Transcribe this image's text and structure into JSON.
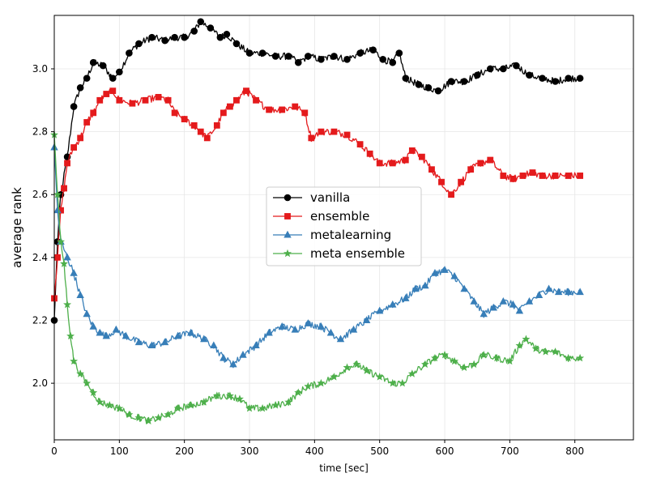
{
  "chart_data": {
    "type": "line",
    "title": "",
    "xlabel": "time [sec]",
    "ylabel": "average rank",
    "xlim": [
      0,
      890
    ],
    "ylim": [
      1.82,
      3.17
    ],
    "xticks": [
      0,
      100,
      200,
      300,
      400,
      500,
      600,
      700,
      800
    ],
    "yticks": [
      2.0,
      2.2,
      2.4,
      2.6,
      2.8,
      3.0
    ],
    "ytick_labels": [
      "2.0",
      "2.2",
      "2.4",
      "2.6",
      "2.8",
      "3.0"
    ],
    "grid": true,
    "legend_position": "center-right",
    "series": [
      {
        "name": "vanilla",
        "color": "#000000",
        "marker": "circle",
        "points": [
          [
            0,
            2.2
          ],
          [
            5,
            2.45
          ],
          [
            10,
            2.6
          ],
          [
            20,
            2.72
          ],
          [
            30,
            2.88
          ],
          [
            40,
            2.94
          ],
          [
            50,
            2.97
          ],
          [
            60,
            3.02
          ],
          [
            75,
            3.01
          ],
          [
            90,
            2.97
          ],
          [
            100,
            2.99
          ],
          [
            115,
            3.05
          ],
          [
            130,
            3.08
          ],
          [
            150,
            3.1
          ],
          [
            170,
            3.09
          ],
          [
            185,
            3.1
          ],
          [
            200,
            3.1
          ],
          [
            215,
            3.12
          ],
          [
            225,
            3.15
          ],
          [
            240,
            3.13
          ],
          [
            255,
            3.1
          ],
          [
            265,
            3.11
          ],
          [
            280,
            3.08
          ],
          [
            300,
            3.05
          ],
          [
            320,
            3.05
          ],
          [
            340,
            3.04
          ],
          [
            360,
            3.04
          ],
          [
            375,
            3.02
          ],
          [
            390,
            3.04
          ],
          [
            410,
            3.03
          ],
          [
            430,
            3.04
          ],
          [
            450,
            3.03
          ],
          [
            470,
            3.05
          ],
          [
            490,
            3.06
          ],
          [
            505,
            3.03
          ],
          [
            520,
            3.02
          ],
          [
            530,
            3.05
          ],
          [
            540,
            2.97
          ],
          [
            560,
            2.95
          ],
          [
            575,
            2.94
          ],
          [
            590,
            2.93
          ],
          [
            610,
            2.96
          ],
          [
            630,
            2.96
          ],
          [
            650,
            2.98
          ],
          [
            670,
            3.0
          ],
          [
            690,
            3.0
          ],
          [
            710,
            3.01
          ],
          [
            730,
            2.98
          ],
          [
            750,
            2.97
          ],
          [
            770,
            2.96
          ],
          [
            790,
            2.97
          ],
          [
            808,
            2.97
          ]
        ]
      },
      {
        "name": "ensemble",
        "color": "#e41a1c",
        "marker": "square",
        "points": [
          [
            0,
            2.27
          ],
          [
            5,
            2.4
          ],
          [
            10,
            2.55
          ],
          [
            15,
            2.62
          ],
          [
            20,
            2.7
          ],
          [
            30,
            2.75
          ],
          [
            40,
            2.78
          ],
          [
            50,
            2.83
          ],
          [
            60,
            2.86
          ],
          [
            70,
            2.9
          ],
          [
            80,
            2.92
          ],
          [
            90,
            2.93
          ],
          [
            100,
            2.9
          ],
          [
            120,
            2.89
          ],
          [
            140,
            2.9
          ],
          [
            160,
            2.91
          ],
          [
            175,
            2.9
          ],
          [
            185,
            2.86
          ],
          [
            200,
            2.84
          ],
          [
            215,
            2.82
          ],
          [
            225,
            2.8
          ],
          [
            235,
            2.78
          ],
          [
            250,
            2.82
          ],
          [
            260,
            2.86
          ],
          [
            270,
            2.88
          ],
          [
            280,
            2.9
          ],
          [
            295,
            2.93
          ],
          [
            310,
            2.9
          ],
          [
            330,
            2.87
          ],
          [
            350,
            2.87
          ],
          [
            370,
            2.88
          ],
          [
            385,
            2.86
          ],
          [
            395,
            2.78
          ],
          [
            410,
            2.8
          ],
          [
            430,
            2.8
          ],
          [
            450,
            2.79
          ],
          [
            470,
            2.76
          ],
          [
            485,
            2.73
          ],
          [
            500,
            2.7
          ],
          [
            520,
            2.7
          ],
          [
            540,
            2.71
          ],
          [
            550,
            2.74
          ],
          [
            565,
            2.72
          ],
          [
            580,
            2.68
          ],
          [
            595,
            2.64
          ],
          [
            610,
            2.6
          ],
          [
            625,
            2.64
          ],
          [
            640,
            2.68
          ],
          [
            655,
            2.7
          ],
          [
            670,
            2.71
          ],
          [
            690,
            2.66
          ],
          [
            705,
            2.65
          ],
          [
            720,
            2.66
          ],
          [
            735,
            2.67
          ],
          [
            750,
            2.66
          ],
          [
            770,
            2.66
          ],
          [
            790,
            2.66
          ],
          [
            808,
            2.66
          ]
        ]
      },
      {
        "name": "metalearning",
        "color": "#377eb8",
        "marker": "triangle",
        "points": [
          [
            0,
            2.75
          ],
          [
            5,
            2.55
          ],
          [
            10,
            2.45
          ],
          [
            20,
            2.4
          ],
          [
            30,
            2.35
          ],
          [
            40,
            2.28
          ],
          [
            50,
            2.22
          ],
          [
            60,
            2.18
          ],
          [
            70,
            2.16
          ],
          [
            80,
            2.15
          ],
          [
            95,
            2.17
          ],
          [
            110,
            2.15
          ],
          [
            130,
            2.13
          ],
          [
            150,
            2.12
          ],
          [
            170,
            2.13
          ],
          [
            190,
            2.15
          ],
          [
            210,
            2.16
          ],
          [
            230,
            2.14
          ],
          [
            245,
            2.12
          ],
          [
            260,
            2.08
          ],
          [
            275,
            2.06
          ],
          [
            290,
            2.09
          ],
          [
            310,
            2.12
          ],
          [
            330,
            2.16
          ],
          [
            350,
            2.18
          ],
          [
            370,
            2.17
          ],
          [
            390,
            2.19
          ],
          [
            410,
            2.18
          ],
          [
            425,
            2.16
          ],
          [
            440,
            2.14
          ],
          [
            460,
            2.17
          ],
          [
            480,
            2.2
          ],
          [
            500,
            2.23
          ],
          [
            520,
            2.25
          ],
          [
            540,
            2.27
          ],
          [
            555,
            2.3
          ],
          [
            570,
            2.31
          ],
          [
            585,
            2.35
          ],
          [
            600,
            2.36
          ],
          [
            615,
            2.34
          ],
          [
            630,
            2.3
          ],
          [
            645,
            2.26
          ],
          [
            660,
            2.22
          ],
          [
            675,
            2.24
          ],
          [
            690,
            2.26
          ],
          [
            705,
            2.25
          ],
          [
            715,
            2.23
          ],
          [
            730,
            2.26
          ],
          [
            745,
            2.28
          ],
          [
            760,
            2.3
          ],
          [
            775,
            2.29
          ],
          [
            790,
            2.29
          ],
          [
            808,
            2.29
          ]
        ]
      },
      {
        "name": "meta ensemble",
        "color": "#4daf4a",
        "marker": "star",
        "points": [
          [
            0,
            2.79
          ],
          [
            5,
            2.6
          ],
          [
            10,
            2.45
          ],
          [
            15,
            2.38
          ],
          [
            20,
            2.25
          ],
          [
            25,
            2.15
          ],
          [
            30,
            2.07
          ],
          [
            40,
            2.03
          ],
          [
            50,
            2.0
          ],
          [
            60,
            1.97
          ],
          [
            70,
            1.94
          ],
          [
            85,
            1.93
          ],
          [
            100,
            1.92
          ],
          [
            115,
            1.9
          ],
          [
            130,
            1.89
          ],
          [
            145,
            1.88
          ],
          [
            160,
            1.89
          ],
          [
            175,
            1.9
          ],
          [
            190,
            1.92
          ],
          [
            210,
            1.93
          ],
          [
            230,
            1.94
          ],
          [
            250,
            1.96
          ],
          [
            270,
            1.96
          ],
          [
            285,
            1.95
          ],
          [
            300,
            1.92
          ],
          [
            320,
            1.92
          ],
          [
            340,
            1.93
          ],
          [
            360,
            1.94
          ],
          [
            375,
            1.97
          ],
          [
            390,
            1.99
          ],
          [
            410,
            2.0
          ],
          [
            430,
            2.02
          ],
          [
            450,
            2.05
          ],
          [
            465,
            2.06
          ],
          [
            480,
            2.04
          ],
          [
            500,
            2.02
          ],
          [
            520,
            2.0
          ],
          [
            535,
            2.0
          ],
          [
            550,
            2.03
          ],
          [
            570,
            2.06
          ],
          [
            585,
            2.08
          ],
          [
            600,
            2.09
          ],
          [
            615,
            2.07
          ],
          [
            630,
            2.05
          ],
          [
            645,
            2.06
          ],
          [
            660,
            2.09
          ],
          [
            680,
            2.08
          ],
          [
            700,
            2.07
          ],
          [
            715,
            2.12
          ],
          [
            725,
            2.14
          ],
          [
            740,
            2.11
          ],
          [
            755,
            2.1
          ],
          [
            770,
            2.1
          ],
          [
            790,
            2.08
          ],
          [
            808,
            2.08
          ]
        ]
      }
    ]
  }
}
